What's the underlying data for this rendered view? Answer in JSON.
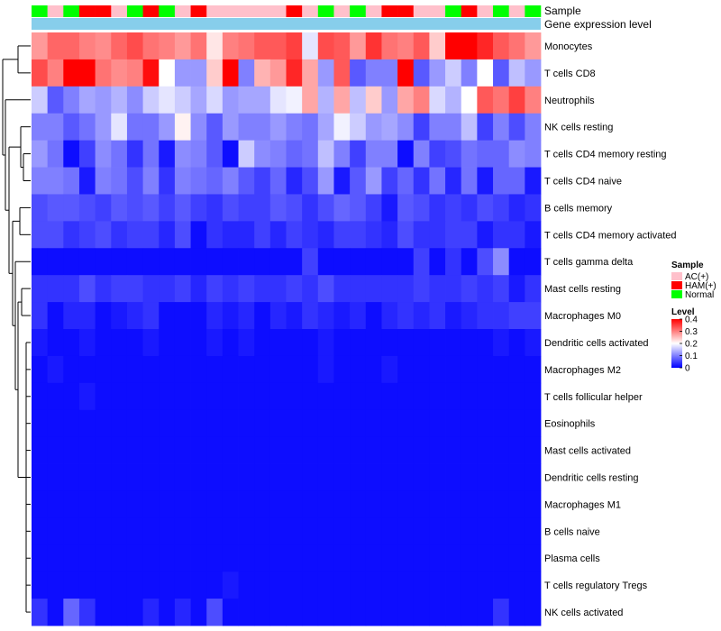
{
  "chart_data": {
    "type": "heatmap",
    "title": "",
    "annotation_labels": {
      "sample": "Sample",
      "expression": "Gene expression level"
    },
    "sample_groups": [
      "N",
      "A",
      "N",
      "H",
      "H",
      "A",
      "N",
      "H",
      "N",
      "A",
      "H",
      "A",
      "A",
      "A",
      "A",
      "A",
      "H",
      "A",
      "N",
      "A",
      "N",
      "A",
      "H",
      "H",
      "A",
      "A",
      "N",
      "H",
      "A",
      "N",
      "A",
      "N"
    ],
    "rows": [
      "Monocytes",
      "T cells CD8",
      "Neutrophils",
      "NK cells resting",
      "T cells CD4 memory resting",
      "T cells CD4 naive",
      "B cells memory",
      "T cells CD4 memory activated",
      "T cells gamma delta",
      "Mast cells resting",
      "Macrophages M0",
      "Dendritic cells activated",
      "Macrophages M2",
      "T cells follicular helper",
      "Eosinophils",
      "Mast cells activated",
      "Dendritic cells resting",
      "Macrophages M1",
      "B cells naive",
      "Plasma cells",
      "T cells regulatory  Tregs",
      "NK cells activated"
    ],
    "values": [
      [
        0.28,
        0.32,
        0.32,
        0.3,
        0.29,
        0.32,
        0.34,
        0.31,
        0.3,
        0.28,
        0.31,
        0.22,
        0.3,
        0.31,
        0.33,
        0.33,
        0.35,
        0.18,
        0.34,
        0.33,
        0.28,
        0.36,
        0.31,
        0.3,
        0.33,
        0.24,
        0.41,
        0.4,
        0.37,
        0.33,
        0.31,
        0.28
      ],
      [
        0.34,
        0.3,
        0.4,
        0.4,
        0.31,
        0.29,
        0.3,
        0.39,
        0.2,
        0.12,
        0.12,
        0.24,
        0.4,
        0.1,
        0.26,
        0.28,
        0.37,
        0.27,
        0.12,
        0.33,
        0.07,
        0.1,
        0.1,
        0.4,
        0.07,
        0.12,
        0.16,
        0.1,
        0.2,
        0.07,
        0.15,
        0.12
      ],
      [
        0.16,
        0.07,
        0.1,
        0.13,
        0.12,
        0.14,
        0.11,
        0.16,
        0.18,
        0.16,
        0.13,
        0.17,
        0.12,
        0.13,
        0.13,
        0.18,
        0.19,
        0.27,
        0.14,
        0.27,
        0.15,
        0.24,
        0.12,
        0.27,
        0.3,
        0.17,
        0.14,
        0.2,
        0.33,
        0.31,
        0.35,
        0.3
      ],
      [
        0.1,
        0.1,
        0.07,
        0.09,
        0.12,
        0.18,
        0.09,
        0.09,
        0.12,
        0.21,
        0.11,
        0.07,
        0.12,
        0.1,
        0.1,
        0.12,
        0.1,
        0.09,
        0.13,
        0.19,
        0.16,
        0.12,
        0.13,
        0.11,
        0.05,
        0.1,
        0.1,
        0.15,
        0.05,
        0.1,
        0.06,
        0.1
      ],
      [
        0.12,
        0.09,
        0.01,
        0.05,
        0.11,
        0.09,
        0.04,
        0.09,
        0.02,
        0.11,
        0.1,
        0.07,
        0.01,
        0.16,
        0.11,
        0.1,
        0.08,
        0.09,
        0.15,
        0.1,
        0.05,
        0.1,
        0.1,
        0.01,
        0.1,
        0.05,
        0.06,
        0.09,
        0.08,
        0.08,
        0.11,
        0.1
      ],
      [
        0.1,
        0.1,
        0.09,
        0.02,
        0.1,
        0.09,
        0.06,
        0.1,
        0.04,
        0.1,
        0.09,
        0.08,
        0.1,
        0.07,
        0.05,
        0.08,
        0.03,
        0.06,
        0.12,
        0.02,
        0.07,
        0.12,
        0.05,
        0.08,
        0.04,
        0.09,
        0.03,
        0.09,
        0.02,
        0.08,
        0.08,
        0.02
      ],
      [
        0.06,
        0.07,
        0.07,
        0.06,
        0.05,
        0.07,
        0.06,
        0.07,
        0.05,
        0.07,
        0.05,
        0.04,
        0.06,
        0.05,
        0.05,
        0.07,
        0.06,
        0.04,
        0.06,
        0.08,
        0.07,
        0.05,
        0.02,
        0.07,
        0.06,
        0.04,
        0.05,
        0.04,
        0.06,
        0.05,
        0.03,
        0.04
      ],
      [
        0.06,
        0.06,
        0.04,
        0.05,
        0.06,
        0.04,
        0.05,
        0.05,
        0.03,
        0.06,
        0.01,
        0.04,
        0.03,
        0.03,
        0.05,
        0.03,
        0.05,
        0.04,
        0.03,
        0.05,
        0.05,
        0.04,
        0.03,
        0.06,
        0.04,
        0.04,
        0.05,
        0.05,
        0.02,
        0.04,
        0.04,
        0.02
      ],
      [
        0.01,
        0.01,
        0.01,
        0.01,
        0.01,
        0.01,
        0.01,
        0.01,
        0.01,
        0.01,
        0.01,
        0.01,
        0.01,
        0.01,
        0.01,
        0.01,
        0.01,
        0.05,
        0.01,
        0.01,
        0.01,
        0.01,
        0.01,
        0.01,
        0.05,
        0.01,
        0.04,
        0.01,
        0.06,
        0.11,
        0.01,
        0.01
      ],
      [
        0.04,
        0.04,
        0.04,
        0.06,
        0.04,
        0.05,
        0.05,
        0.04,
        0.04,
        0.05,
        0.03,
        0.05,
        0.04,
        0.05,
        0.04,
        0.04,
        0.05,
        0.04,
        0.06,
        0.04,
        0.04,
        0.04,
        0.04,
        0.04,
        0.05,
        0.04,
        0.04,
        0.05,
        0.04,
        0.05,
        0.02,
        0.04
      ],
      [
        0.04,
        0.01,
        0.03,
        0.03,
        0.01,
        0.02,
        0.03,
        0.04,
        0.01,
        0.01,
        0.01,
        0.03,
        0.02,
        0.03,
        0.01,
        0.03,
        0.02,
        0.04,
        0.03,
        0.02,
        0.03,
        0.01,
        0.03,
        0.04,
        0.03,
        0.04,
        0.02,
        0.03,
        0.04,
        0.04,
        0.05,
        0.05
      ],
      [
        0.02,
        0.01,
        0.01,
        0.02,
        0.01,
        0.01,
        0.01,
        0.02,
        0.01,
        0.01,
        0.01,
        0.02,
        0.01,
        0.02,
        0.01,
        0.01,
        0.01,
        0.01,
        0.02,
        0.01,
        0.01,
        0.01,
        0.01,
        0.01,
        0.01,
        0.01,
        0.01,
        0.01,
        0.01,
        0.02,
        0.01,
        0.02
      ],
      [
        0.01,
        0.02,
        0.01,
        0.01,
        0.01,
        0.01,
        0.01,
        0.01,
        0.01,
        0.01,
        0.01,
        0.01,
        0.01,
        0.01,
        0.01,
        0.01,
        0.01,
        0.01,
        0.02,
        0.01,
        0.01,
        0.01,
        0.02,
        0.01,
        0.01,
        0.01,
        0.01,
        0.01,
        0.01,
        0.01,
        0.01,
        0.01
      ],
      [
        0.01,
        0.01,
        0.01,
        0.02,
        0.01,
        0.01,
        0.01,
        0.01,
        0.01,
        0.01,
        0.01,
        0.01,
        0.01,
        0.01,
        0.01,
        0.01,
        0.01,
        0.01,
        0.01,
        0.01,
        0.01,
        0.01,
        0.01,
        0.01,
        0.01,
        0.01,
        0.01,
        0.01,
        0.01,
        0.01,
        0.01,
        0.01
      ],
      [
        0.01,
        0.01,
        0.01,
        0.01,
        0.01,
        0.01,
        0.01,
        0.01,
        0.01,
        0.01,
        0.01,
        0.01,
        0.01,
        0.01,
        0.01,
        0.01,
        0.01,
        0.01,
        0.01,
        0.01,
        0.01,
        0.01,
        0.01,
        0.01,
        0.01,
        0.01,
        0.01,
        0.01,
        0.01,
        0.01,
        0.01,
        0.01
      ],
      [
        0.01,
        0.01,
        0.01,
        0.01,
        0.01,
        0.01,
        0.01,
        0.01,
        0.01,
        0.01,
        0.01,
        0.01,
        0.01,
        0.01,
        0.01,
        0.01,
        0.01,
        0.01,
        0.01,
        0.01,
        0.01,
        0.01,
        0.01,
        0.01,
        0.01,
        0.01,
        0.01,
        0.01,
        0.01,
        0.01,
        0.01,
        0.01
      ],
      [
        0.01,
        0.01,
        0.01,
        0.01,
        0.01,
        0.01,
        0.01,
        0.01,
        0.01,
        0.01,
        0.01,
        0.01,
        0.01,
        0.01,
        0.01,
        0.01,
        0.01,
        0.01,
        0.01,
        0.01,
        0.01,
        0.01,
        0.01,
        0.01,
        0.01,
        0.01,
        0.01,
        0.01,
        0.01,
        0.01,
        0.01,
        0.01
      ],
      [
        0.01,
        0.01,
        0.01,
        0.01,
        0.01,
        0.01,
        0.01,
        0.01,
        0.01,
        0.01,
        0.01,
        0.01,
        0.01,
        0.01,
        0.01,
        0.01,
        0.01,
        0.01,
        0.01,
        0.01,
        0.01,
        0.01,
        0.01,
        0.01,
        0.01,
        0.01,
        0.01,
        0.01,
        0.01,
        0.01,
        0.01,
        0.01
      ],
      [
        0.01,
        0.01,
        0.01,
        0.01,
        0.01,
        0.01,
        0.01,
        0.01,
        0.01,
        0.01,
        0.01,
        0.01,
        0.01,
        0.01,
        0.01,
        0.01,
        0.01,
        0.01,
        0.01,
        0.01,
        0.01,
        0.01,
        0.01,
        0.01,
        0.01,
        0.01,
        0.01,
        0.01,
        0.01,
        0.01,
        0.01,
        0.01
      ],
      [
        0.01,
        0.01,
        0.01,
        0.01,
        0.01,
        0.01,
        0.01,
        0.01,
        0.01,
        0.01,
        0.01,
        0.01,
        0.01,
        0.01,
        0.01,
        0.01,
        0.01,
        0.01,
        0.01,
        0.01,
        0.01,
        0.01,
        0.01,
        0.01,
        0.01,
        0.01,
        0.01,
        0.01,
        0.01,
        0.01,
        0.01,
        0.01
      ],
      [
        0.01,
        0.01,
        0.01,
        0.01,
        0.01,
        0.01,
        0.01,
        0.01,
        0.01,
        0.01,
        0.01,
        0.01,
        0.02,
        0.01,
        0.01,
        0.01,
        0.01,
        0.01,
        0.01,
        0.01,
        0.01,
        0.01,
        0.01,
        0.01,
        0.01,
        0.01,
        0.01,
        0.01,
        0.01,
        0.01,
        0.01,
        0.01
      ],
      [
        0.04,
        0.01,
        0.08,
        0.04,
        0.01,
        0.01,
        0.01,
        0.03,
        0.01,
        0.03,
        0.01,
        0.06,
        0.01,
        0.01,
        0.01,
        0.01,
        0.01,
        0.01,
        0.01,
        0.01,
        0.01,
        0.01,
        0.01,
        0.01,
        0.01,
        0.01,
        0.01,
        0.01,
        0.01,
        0.04,
        0.01,
        0.01
      ]
    ],
    "color_scale": {
      "min": 0,
      "max": 0.4,
      "low": "#0000ff",
      "mid": "#ffffff",
      "high": "#ff0000",
      "mid_value": 0.2
    },
    "expression_bar_color": "#87ceeb",
    "legend": {
      "sample_title": "Sample",
      "groups": [
        {
          "code": "A",
          "label": "AC(+)",
          "color": "#ffc0cb"
        },
        {
          "code": "H",
          "label": "HAM(+)",
          "color": "#ff0000"
        },
        {
          "code": "N",
          "label": "Normal",
          "color": "#00ff00"
        }
      ],
      "level_title": "Level",
      "level_ticks": [
        "0.4",
        "0.3",
        "0.2",
        "0.1",
        "0"
      ],
      "level_tick_values": [
        0.4,
        0.3,
        0.2,
        0.1,
        0
      ]
    }
  }
}
